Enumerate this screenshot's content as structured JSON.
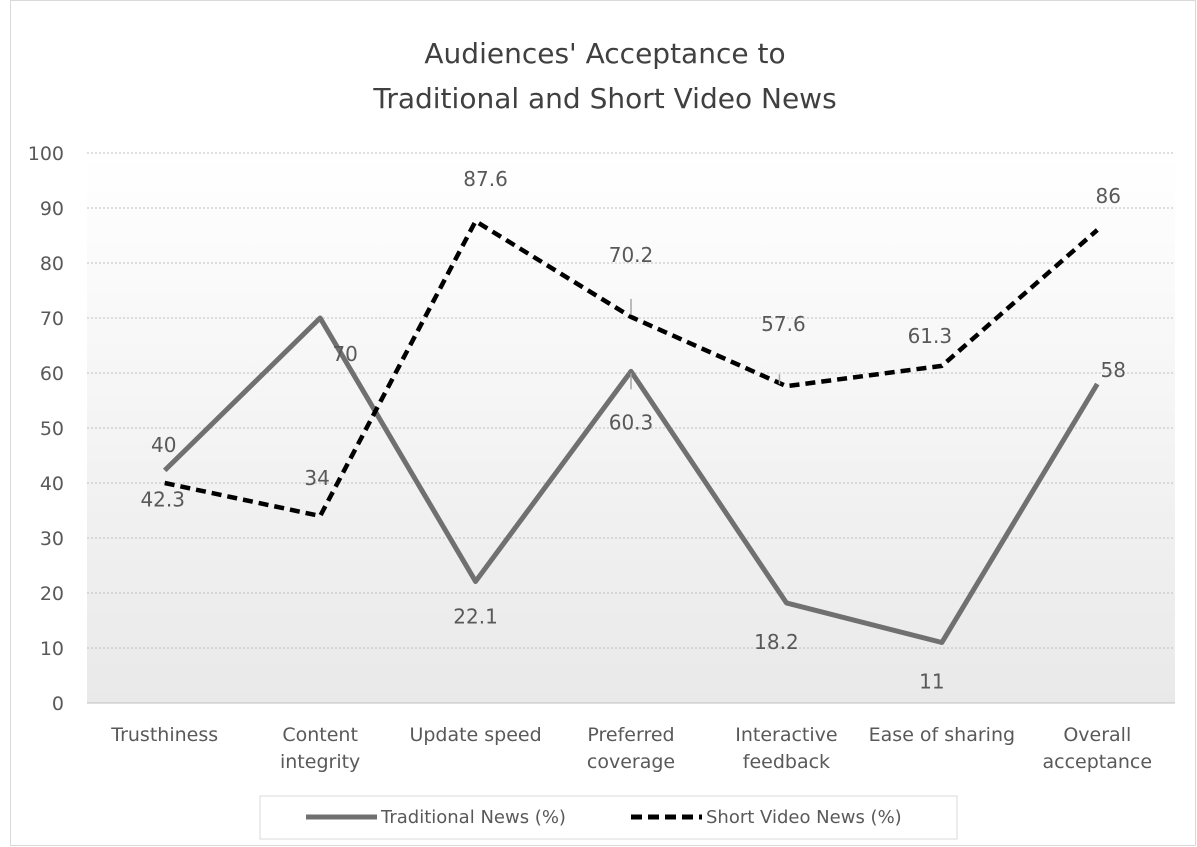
{
  "chart_data": {
    "type": "line",
    "title_lines": [
      "Audiences' Acceptance to",
      "Traditional and Short Video News"
    ],
    "categories": [
      [
        "Trusthiness"
      ],
      [
        "Content",
        "integrity"
      ],
      [
        "Update speed"
      ],
      [
        "Preferred",
        "coverage"
      ],
      [
        "Interactive",
        "feedback"
      ],
      [
        "Ease of sharing"
      ],
      [
        "Overall",
        "acceptance"
      ]
    ],
    "ylim": [
      0,
      100
    ],
    "yticks": [
      0,
      10,
      20,
      30,
      40,
      50,
      60,
      70,
      80,
      90,
      100
    ],
    "grid": true,
    "legend_position": "bottom",
    "series": [
      {
        "name": "Traditional News (%)",
        "values": [
          42.3,
          70,
          22.1,
          60.3,
          18.2,
          11,
          58
        ],
        "color": "#707070",
        "style": "solid"
      },
      {
        "name": "Short Video News (%)",
        "values": [
          40,
          34,
          87.6,
          70.2,
          57.6,
          61.3,
          86
        ],
        "color": "#000000",
        "style": "dashed"
      }
    ]
  }
}
